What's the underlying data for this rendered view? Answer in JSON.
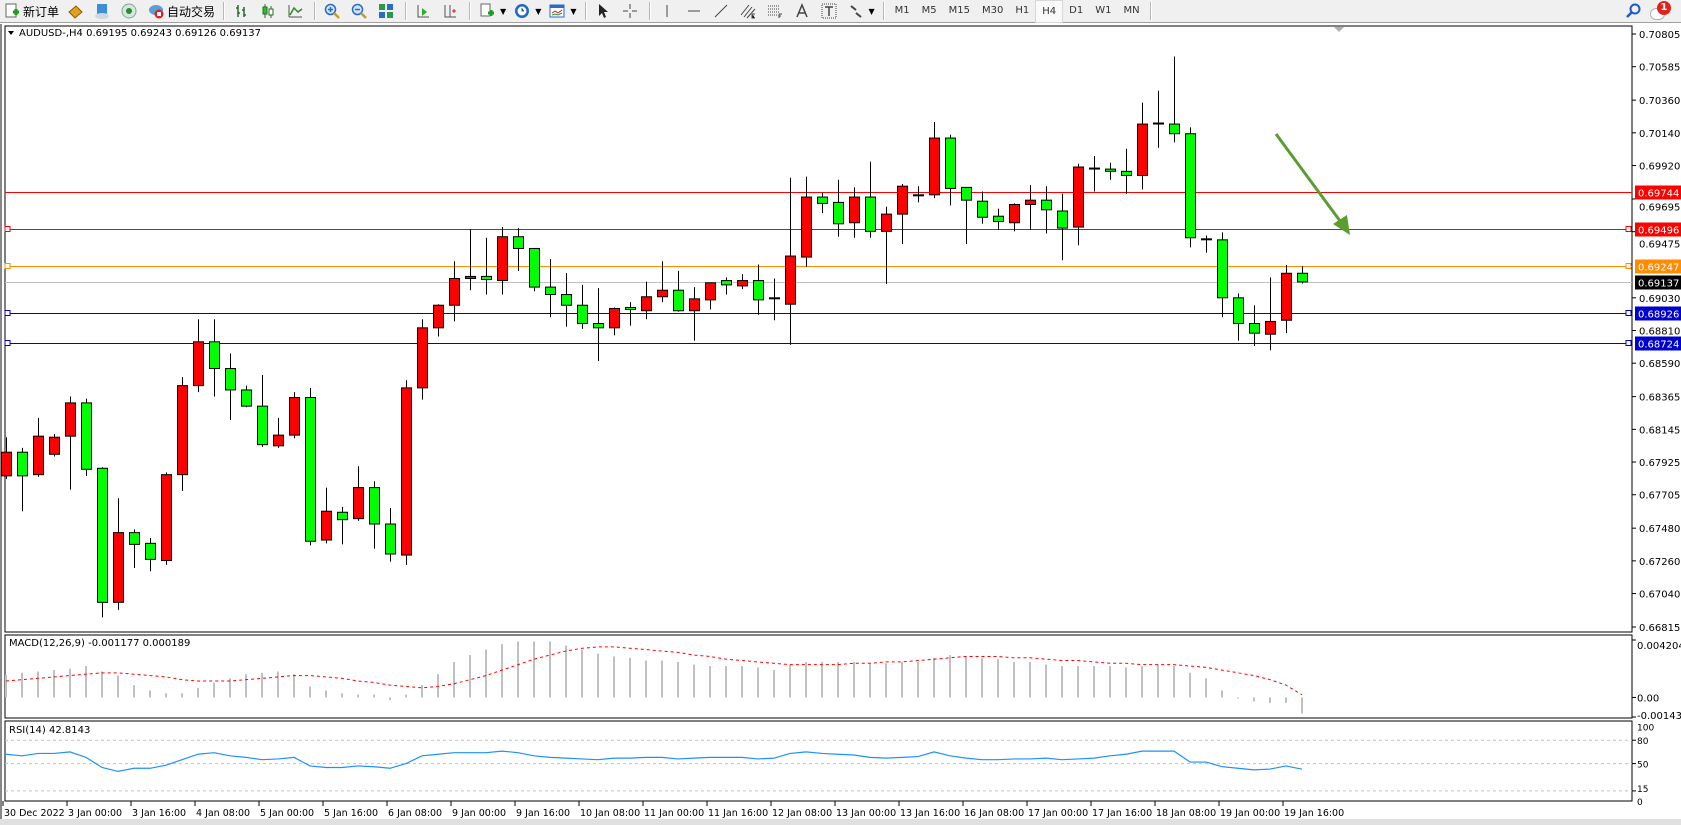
{
  "toolbar": {
    "new_order": "新订单",
    "auto_trading": "自动交易",
    "timeframes": [
      "M1",
      "M5",
      "M15",
      "M30",
      "H1",
      "H4",
      "D1",
      "W1",
      "MN"
    ],
    "active_timeframe": "H4",
    "notification_count": "1",
    "icons": [
      "new-order-icon",
      "market-watch-icon",
      "navigator-icon",
      "signals-icon",
      "auto-trading-icon",
      "bar-chart-icon",
      "candlestick-icon",
      "line-chart-icon",
      "zoom-in-icon",
      "zoom-out-icon",
      "tile-windows-icon",
      "autoscroll-icon",
      "chart-shift-icon",
      "indicators-icon",
      "periods-icon",
      "templates-icon",
      "cursor-icon",
      "crosshair-icon",
      "vertical-line-icon",
      "horizontal-line-icon",
      "trendline-icon",
      "equidistant-channel-icon",
      "fibonacci-icon",
      "text-icon",
      "text-label-icon",
      "arrows-icon",
      "search-icon",
      "notification-icon"
    ]
  },
  "chart": {
    "header": "AUDUSD-,H4  0.69195 0.69243 0.69126 0.69137",
    "colors": {
      "bull": "#ff0000",
      "bear": "#00ff00",
      "grid": "#c0c0c0",
      "arrow": "#5a9e2f",
      "macd_hist": "#c0c0c0",
      "macd_signal": "#ff0000",
      "rsi": "#1e90ff"
    },
    "price_ticks": [
      "0.70805",
      "0.70585",
      "0.70360",
      "0.70140",
      "0.69920",
      "0.69695",
      "0.69475",
      "0.69030",
      "0.68810",
      "0.68590",
      "0.68365",
      "0.68145",
      "0.67925",
      "0.67705",
      "0.67480",
      "0.67260",
      "0.67040",
      "0.66815"
    ],
    "levels": [
      {
        "price": "0.69744",
        "color": "#ff0000",
        "text_color": "#ffffff",
        "marker": false
      },
      {
        "price": "0.69496",
        "color": "#ff0000",
        "text_color": "#ffffff",
        "marker": true
      },
      {
        "price": "0.69247",
        "color": "#ff8c00",
        "text_color": "#ffffff",
        "marker": true
      },
      {
        "price": "0.69137",
        "color": "#c0c0c0",
        "label_bg": "#000000",
        "text_color": "#ffffff",
        "marker": false
      },
      {
        "price": "0.68926",
        "color": "#0000cc",
        "text_color": "#ffffff",
        "marker": true
      },
      {
        "price": "0.68724",
        "color": "#0000cc",
        "text_color": "#ffffff",
        "marker": true
      }
    ],
    "time_labels": [
      "30 Dec 2022",
      "3 Jan 00:00",
      "3 Jan 16:00",
      "4 Jan 08:00",
      "5 Jan 00:00",
      "5 Jan 16:00",
      "6 Jan 08:00",
      "9 Jan 00:00",
      "9 Jan 16:00",
      "10 Jan 08:00",
      "11 Jan 00:00",
      "11 Jan 16:00",
      "12 Jan 08:00",
      "13 Jan 00:00",
      "13 Jan 16:00",
      "16 Jan 08:00",
      "17 Jan 00:00",
      "17 Jan 16:00",
      "18 Jan 08:00",
      "19 Jan 00:00",
      "19 Jan 16:00"
    ],
    "ohlc": [
      [
        0.67832,
        0.68092,
        0.67811,
        0.67991
      ],
      [
        0.67991,
        0.6802,
        0.67594,
        0.67832
      ],
      [
        0.6784,
        0.68222,
        0.67825,
        0.68099
      ],
      [
        0.67977,
        0.68114,
        0.67962,
        0.68092
      ],
      [
        0.68099,
        0.68366,
        0.67739,
        0.68323
      ],
      [
        0.68323,
        0.68352,
        0.67832,
        0.67876
      ],
      [
        0.67883,
        0.6789,
        0.6688,
        0.66981
      ],
      [
        0.66981,
        0.67681,
        0.66931,
        0.6745
      ],
      [
        0.6745,
        0.67472,
        0.67212,
        0.67371
      ],
      [
        0.67378,
        0.67414,
        0.6719,
        0.6727
      ],
      [
        0.67262,
        0.67855,
        0.67233,
        0.6784
      ],
      [
        0.6784,
        0.68496,
        0.67731,
        0.68439
      ],
      [
        0.68439,
        0.68886,
        0.68395,
        0.68734
      ],
      [
        0.68734,
        0.68886,
        0.68366,
        0.68554
      ],
      [
        0.68554,
        0.68655,
        0.68208,
        0.6841
      ],
      [
        0.6841,
        0.68439,
        0.68294,
        0.68301
      ],
      [
        0.68301,
        0.68511,
        0.68027,
        0.68042
      ],
      [
        0.68034,
        0.68222,
        0.6802,
        0.68106
      ],
      [
        0.68106,
        0.68395,
        0.68085,
        0.68359
      ],
      [
        0.68359,
        0.68424,
        0.67364,
        0.67392
      ],
      [
        0.674,
        0.67753,
        0.67378,
        0.67594
      ],
      [
        0.67587,
        0.67623,
        0.67371,
        0.67537
      ],
      [
        0.67544,
        0.67897,
        0.67529,
        0.67753
      ],
      [
        0.67753,
        0.67796,
        0.67342,
        0.67508
      ],
      [
        0.67508,
        0.67616,
        0.67255,
        0.67306
      ],
      [
        0.67299,
        0.68475,
        0.67233,
        0.68424
      ],
      [
        0.68424,
        0.68886,
        0.68345,
        0.68828
      ],
      [
        0.68828,
        0.68987,
        0.6877,
        0.6898
      ],
      [
        0.6898,
        0.69275,
        0.68871,
        0.6916
      ],
      [
        0.6916,
        0.69492,
        0.69081,
        0.69174
      ],
      [
        0.69174,
        0.69434,
        0.69052,
        0.69153
      ],
      [
        0.69146,
        0.69506,
        0.69052,
        0.69441
      ],
      [
        0.69441,
        0.69499,
        0.69211,
        0.69362
      ],
      [
        0.69362,
        0.69362,
        0.69074,
        0.69102
      ],
      [
        0.69102,
        0.6929,
        0.689,
        0.69052
      ],
      [
        0.69052,
        0.69196,
        0.68835,
        0.6898
      ],
      [
        0.6898,
        0.69117,
        0.68821,
        0.68857
      ],
      [
        0.68857,
        0.69095,
        0.68605,
        0.68828
      ],
      [
        0.68828,
        0.68965,
        0.68778,
        0.68958
      ],
      [
        0.68965,
        0.69001,
        0.68843,
        0.68951
      ],
      [
        0.68943,
        0.69138,
        0.68886,
        0.69037
      ],
      [
        0.69037,
        0.69275,
        0.69001,
        0.69081
      ],
      [
        0.69081,
        0.69211,
        0.68936,
        0.68943
      ],
      [
        0.68943,
        0.69102,
        0.68742,
        0.69023
      ],
      [
        0.69016,
        0.69131,
        0.68951,
        0.69131
      ],
      [
        0.69146,
        0.69167,
        0.69052,
        0.69117
      ],
      [
        0.6911,
        0.69189,
        0.69088,
        0.69146
      ],
      [
        0.69146,
        0.69254,
        0.68915,
        0.69016
      ],
      [
        0.6903,
        0.6916,
        0.68879,
        0.6903
      ],
      [
        0.68987,
        0.69838,
        0.68713,
        0.69311
      ],
      [
        0.69304,
        0.69845,
        0.69239,
        0.69708
      ],
      [
        0.69708,
        0.69737,
        0.696,
        0.69665
      ],
      [
        0.69672,
        0.69824,
        0.69441,
        0.69528
      ],
      [
        0.69535,
        0.69773,
        0.69434,
        0.69708
      ],
      [
        0.69708,
        0.69946,
        0.69434,
        0.69477
      ],
      [
        0.69477,
        0.69643,
        0.69124,
        0.69593
      ],
      [
        0.69593,
        0.69796,
        0.69391,
        0.69781
      ],
      [
        0.69723,
        0.69781,
        0.69672,
        0.69723
      ],
      [
        0.69723,
        0.70213,
        0.69701,
        0.70105
      ],
      [
        0.70105,
        0.70127,
        0.69651,
        0.69766
      ],
      [
        0.69773,
        0.69773,
        0.69391,
        0.69687
      ],
      [
        0.6968,
        0.69745,
        0.69528,
        0.69572
      ],
      [
        0.69579,
        0.69629,
        0.69485,
        0.69543
      ],
      [
        0.69535,
        0.69665,
        0.69477,
        0.69658
      ],
      [
        0.69658,
        0.69788,
        0.69485,
        0.69687
      ],
      [
        0.69687,
        0.69781,
        0.69463,
        0.69622
      ],
      [
        0.69614,
        0.6973,
        0.69283,
        0.69499
      ],
      [
        0.69506,
        0.69932,
        0.69384,
        0.6991
      ],
      [
        0.69903,
        0.69983,
        0.69745,
        0.69903
      ],
      [
        0.69896,
        0.69939,
        0.69824,
        0.69881
      ],
      [
        0.69881,
        0.70033,
        0.6973,
        0.69853
      ],
      [
        0.69853,
        0.70343,
        0.69759,
        0.70199
      ],
      [
        0.70206,
        0.70423,
        0.7004,
        0.70206
      ],
      [
        0.70199,
        0.70654,
        0.70076,
        0.70134
      ],
      [
        0.70134,
        0.70177,
        0.69369,
        0.69434
      ],
      [
        0.69427,
        0.69449,
        0.69333,
        0.69427
      ],
      [
        0.6942,
        0.6947,
        0.689,
        0.6903
      ],
      [
        0.6903,
        0.69059,
        0.68742,
        0.68857
      ],
      [
        0.68857,
        0.6898,
        0.68706,
        0.68792
      ],
      [
        0.68785,
        0.69167,
        0.68677,
        0.68871
      ],
      [
        0.68879,
        0.6925,
        0.68792,
        0.69195
      ],
      [
        0.69195,
        0.69243,
        0.69126,
        0.69137
      ]
    ]
  },
  "macd": {
    "header": "MACD(12,26,9) -0.001177 0.000189",
    "ticks": [
      "0.004204",
      "0.00",
      "-0.001433"
    ],
    "range": [
      -0.001433,
      0.004204
    ],
    "histogram": [
      0.00165,
      0.0018,
      0.0019,
      0.002,
      0.0021,
      0.0023,
      0.0019,
      0.0016,
      0.0009,
      0.0005,
      0.0003,
      0.0003,
      0.0007,
      0.0011,
      0.0014,
      0.0017,
      0.0018,
      0.0019,
      0.0017,
      0.0008,
      0.0005,
      0.0003,
      0.0002,
      0.0002,
      -0.0002,
      0.0002,
      0.0009,
      0.0017,
      0.0026,
      0.0031,
      0.0035,
      0.0039,
      0.0041,
      0.0041,
      0.0041,
      0.0038,
      0.0035,
      0.0032,
      0.003,
      0.0029,
      0.0027,
      0.0027,
      0.0026,
      0.0024,
      0.0023,
      0.0023,
      0.0023,
      0.0022,
      0.002,
      0.0024,
      0.0026,
      0.0026,
      0.0026,
      0.0026,
      0.0025,
      0.0025,
      0.0026,
      0.0026,
      0.0029,
      0.0031,
      0.003,
      0.0029,
      0.0028,
      0.0026,
      0.0026,
      0.0024,
      0.0023,
      0.0023,
      0.0023,
      0.0023,
      0.0022,
      0.0023,
      0.0024,
      0.0023,
      0.0018,
      0.0014,
      0.0005,
      0.0,
      -0.0003,
      -0.0004,
      -0.0004,
      -0.001177
    ],
    "signal": [
      0.0012,
      0.0013,
      0.0014,
      0.0015,
      0.0016,
      0.0017,
      0.0018,
      0.0018,
      0.0017,
      0.0016,
      0.0015,
      0.0013,
      0.0012,
      0.0012,
      0.0012,
      0.0013,
      0.0014,
      0.0015,
      0.0016,
      0.0016,
      0.0015,
      0.0014,
      0.0012,
      0.0011,
      0.0009,
      0.0008,
      0.0007,
      0.0008,
      0.001,
      0.0013,
      0.0016,
      0.002,
      0.0024,
      0.0028,
      0.0031,
      0.0034,
      0.0036,
      0.0037,
      0.0037,
      0.0036,
      0.0035,
      0.0034,
      0.0033,
      0.0031,
      0.003,
      0.0028,
      0.0027,
      0.0026,
      0.0025,
      0.0024,
      0.0024,
      0.0024,
      0.0024,
      0.0025,
      0.0025,
      0.0026,
      0.0026,
      0.0027,
      0.0028,
      0.0029,
      0.003,
      0.003,
      0.003,
      0.0029,
      0.0029,
      0.0028,
      0.0027,
      0.0027,
      0.0026,
      0.0025,
      0.0025,
      0.0024,
      0.0024,
      0.0024,
      0.0023,
      0.0022,
      0.002,
      0.0018,
      0.0016,
      0.0013,
      0.0009,
      0.000189
    ]
  },
  "rsi": {
    "header": "RSI(14) 42.8143",
    "ticks": [
      "100",
      "80",
      "50",
      "15",
      "0"
    ],
    "levels": [
      80,
      50,
      15
    ],
    "values": [
      62,
      60,
      63,
      63,
      65,
      58,
      45,
      40,
      44,
      44,
      48,
      55,
      62,
      64,
      60,
      58,
      55,
      56,
      58,
      47,
      45,
      45,
      47,
      46,
      44,
      50,
      60,
      62,
      64,
      64,
      64,
      66,
      64,
      60,
      58,
      57,
      56,
      55,
      57,
      57,
      58,
      58,
      56,
      57,
      58,
      58,
      58,
      56,
      57,
      63,
      65,
      63,
      62,
      61,
      58,
      57,
      58,
      59,
      65,
      60,
      57,
      55,
      55,
      56,
      56,
      57,
      55,
      56,
      57,
      60,
      62,
      66,
      66,
      66,
      52,
      52,
      46,
      44,
      42,
      43,
      47,
      42.8143
    ]
  }
}
